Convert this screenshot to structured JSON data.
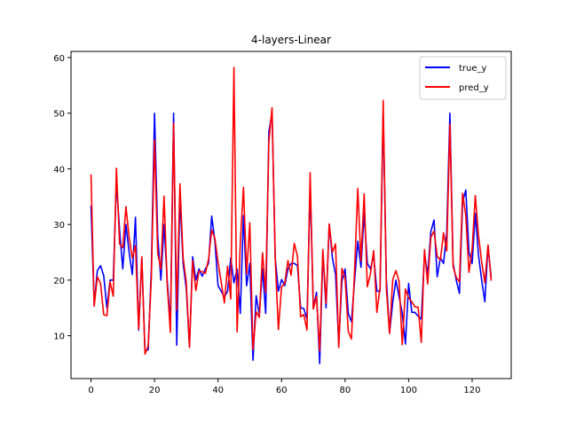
{
  "chart_data": {
    "type": "line",
    "title": "4-layers-Linear",
    "xlabel": "",
    "ylabel": "",
    "xlim": [
      -6.3,
      132.3
    ],
    "ylim": [
      2.3,
      61.1
    ],
    "xticks": [
      0,
      20,
      40,
      60,
      80,
      100,
      120
    ],
    "yticks": [
      10,
      20,
      30,
      40,
      50,
      60
    ],
    "grid": false,
    "legend_position": "top-right",
    "series": [
      {
        "name": "true_y",
        "color": "#0000ff",
        "values": [
          33.4,
          15.6,
          21.7,
          22.6,
          20.8,
          15.0,
          20.0,
          20.0,
          37.6,
          29.0,
          22.0,
          30.0,
          25.0,
          21.0,
          31.3,
          11.0,
          24.0,
          7.2,
          7.5,
          22.0,
          50.0,
          28.0,
          20.0,
          30.0,
          20.0,
          12.0,
          50.0,
          8.3,
          35.0,
          23.0,
          18.5,
          8.0,
          24.2,
          20.0,
          22.0,
          20.7,
          22.0,
          23.0,
          31.5,
          27.0,
          19.0,
          18.0,
          17.0,
          18.0,
          24.0,
          19.5,
          22.0,
          14.0,
          31.6,
          19.0,
          23.0,
          5.6,
          17.2,
          13.8,
          22.0,
          14.0,
          46.7,
          50.0,
          24.0,
          18.0,
          20.1,
          19.0,
          22.0,
          23.0,
          23.0,
          22.6,
          15.0,
          14.9,
          13.0,
          37.0,
          15.0,
          17.8,
          5.0,
          25.0,
          15.0,
          30.0,
          24.0,
          21.0,
          8.5,
          19.8,
          22.0,
          14.0,
          12.5,
          20.0,
          27.0,
          22.3,
          32.0,
          23.0,
          22.0,
          24.5,
          18.0,
          18.0,
          50.0,
          20.0,
          10.5,
          16.0,
          20.0,
          17.0,
          14.0,
          8.5,
          19.4,
          14.2,
          14.2,
          13.5,
          13.0,
          24.8,
          21.0,
          28.7,
          30.8,
          20.6,
          24.0,
          23.0,
          28.5,
          50.0,
          23.0,
          20.0,
          17.6,
          34.0,
          36.2,
          25.0,
          23.0,
          32.0,
          24.5,
          20.0,
          16.1,
          26.2,
          20.4
        ]
      },
      {
        "name": "pred_y",
        "color": "#ff0000",
        "values": [
          39.0,
          15.3,
          20.6,
          19.4,
          13.8,
          13.6,
          19.7,
          17.1,
          40.1,
          26.5,
          25.8,
          33.2,
          27.7,
          24.0,
          26.2,
          11.2,
          24.2,
          6.7,
          8.2,
          20.4,
          45.2,
          24.8,
          22.0,
          35.1,
          19.1,
          10.6,
          48.2,
          14.6,
          37.3,
          24.0,
          19.6,
          7.9,
          23.5,
          18.1,
          21.6,
          21.5,
          21.2,
          23.7,
          29.0,
          27.5,
          23.2,
          19.6,
          15.9,
          22.5,
          16.6,
          58.2,
          10.7,
          26.6,
          36.7,
          21.2,
          30.3,
          7.5,
          14.3,
          13.3,
          24.9,
          17.8,
          44.9,
          51.0,
          23.8,
          11.1,
          18.8,
          19.4,
          23.5,
          20.9,
          26.6,
          24.3,
          13.4,
          13.8,
          11.0,
          39.3,
          14.8,
          17.1,
          7.3,
          25.5,
          15.8,
          30.1,
          25.0,
          26.5,
          7.9,
          22.1,
          20.3,
          10.8,
          9.4,
          21.9,
          36.5,
          23.4,
          35.5,
          18.8,
          21.2,
          25.3,
          14.2,
          18.6,
          52.3,
          18.4,
          10.4,
          20.1,
          21.7,
          19.8,
          8.4,
          18.4,
          16.8,
          16.1,
          15.2,
          15.1,
          8.8,
          25.5,
          19.3,
          27.7,
          28.8,
          24.3,
          23.6,
          28.5,
          25.2,
          48.0,
          22.4,
          20.5,
          19.7,
          35.6,
          31.6,
          21.4,
          25.6,
          35.2,
          28.0,
          23.3,
          19.5,
          26.3,
          19.9
        ]
      }
    ]
  }
}
